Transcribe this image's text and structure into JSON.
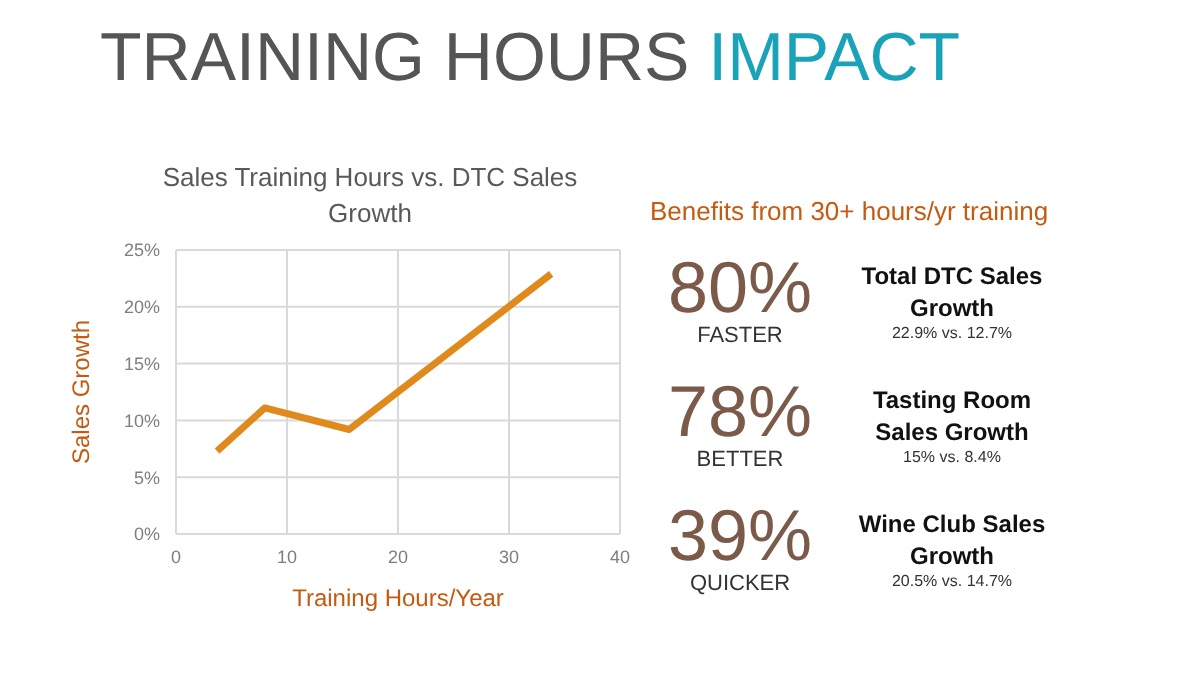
{
  "chart_data": [
    {
      "type": "line",
      "title": "TRAINING HOURS IMPACT",
      "subtitle": "Sales Training Hours vs. DTC Sales Growth",
      "xlabel": "Training Hours/Year",
      "ylabel": "Sales Growth",
      "x": [
        3.7,
        8,
        15.6,
        33.8
      ],
      "series": [
        {
          "color": "#e08a1e",
          "values": [
            7.3,
            11.1,
            9.2,
            22.9
          ]
        }
      ],
      "xlim": [
        0,
        40
      ],
      "xticks": [
        0,
        10,
        20,
        30,
        40
      ],
      "ylim": [
        0,
        25
      ],
      "yticks": [
        {
          "value": 0,
          "label": "0%"
        },
        {
          "value": 5,
          "label": "5%"
        },
        {
          "value": 10,
          "label": "10%"
        },
        {
          "value": 15,
          "label": "15%"
        },
        {
          "value": 20,
          "label": "20%"
        },
        {
          "value": 25,
          "label": "25%"
        }
      ],
      "grid": true,
      "marker": "none",
      "line_style": "solid"
    },
    {
      "type": "other",
      "title": "Benefits from 30+ hours/yr training",
      "annotations": [
        "80%",
        "FASTER",
        "Total DTC Sales Growth",
        "22.9% vs. 12.7%",
        "78%",
        "BETTER",
        "Tasting Room Sales Growth",
        "15% vs. 8.4%",
        "39%",
        "QUICKER",
        "Wine Club Sales Growth",
        "20.5% vs. 14.7%"
      ]
    }
  ]
}
